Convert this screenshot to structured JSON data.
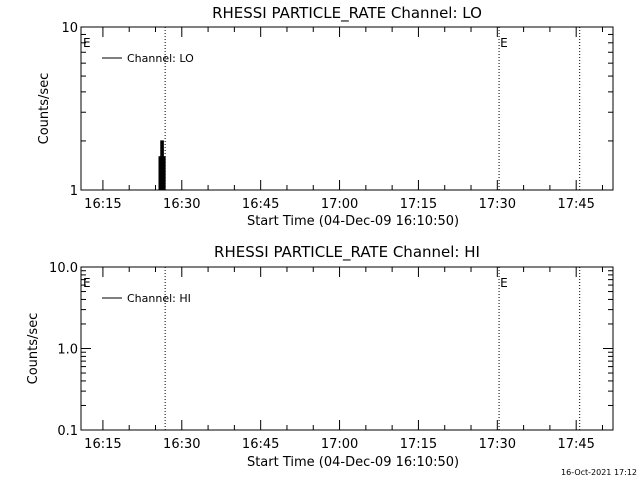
{
  "chart_data": [
    {
      "type": "line",
      "title": "RHESSI PARTICLE_RATE Channel: LO",
      "xlabel": "Start Time (04-Dec-09 16:10:50)",
      "ylabel": "Counts/sec",
      "y_scale": "log",
      "xlim": [
        "16:10:50",
        "17:52:00"
      ],
      "ylim": [
        1,
        10
      ],
      "x_tick_labels": [
        "16:15",
        "16:30",
        "16:45",
        "17:00",
        "17:15",
        "17:30",
        "17:45"
      ],
      "y_tick_labels": [
        "1",
        "10"
      ],
      "y_tick_values": [
        1,
        10
      ],
      "grid": false,
      "legend_position": "top-left",
      "series": [
        {
          "name": "Channel: LO",
          "color": "#000000",
          "points": [
            {
              "t": "16:25:30",
              "v": 1
            },
            {
              "t": "16:25:40",
              "v": 1.6
            },
            {
              "t": "16:25:50",
              "v": 1
            },
            {
              "t": "16:26:00",
              "v": 2
            },
            {
              "t": "16:26:10",
              "v": 1
            },
            {
              "t": "16:26:20",
              "v": 2
            },
            {
              "t": "16:26:30",
              "v": 1
            },
            {
              "t": "16:26:40",
              "v": 1.6
            },
            {
              "t": "16:26:50",
              "v": 1
            }
          ]
        }
      ],
      "vlines": [
        {
          "t": "16:26:50",
          "label": ""
        },
        {
          "t": "17:30:20",
          "label": "E"
        },
        {
          "t": "17:45:40",
          "label": ""
        }
      ],
      "edge_labels": [
        {
          "t": "16:10:50",
          "label": "E"
        }
      ]
    },
    {
      "type": "line",
      "title": "RHESSI PARTICLE_RATE Channel: HI",
      "xlabel": "Start Time (04-Dec-09 16:10:50)",
      "ylabel": "Counts/sec",
      "y_scale": "log",
      "xlim": [
        "16:10:50",
        "17:52:00"
      ],
      "ylim": [
        0.1,
        10
      ],
      "x_tick_labels": [
        "16:15",
        "16:30",
        "16:45",
        "17:00",
        "17:15",
        "17:30",
        "17:45"
      ],
      "y_tick_labels": [
        "0.1",
        "1.0",
        "10.0"
      ],
      "y_tick_values": [
        0.1,
        1,
        10
      ],
      "grid": false,
      "legend_position": "top-left",
      "series": [
        {
          "name": "Channel: HI",
          "color": "#000000",
          "points": []
        }
      ],
      "vlines": [
        {
          "t": "16:26:50",
          "label": ""
        },
        {
          "t": "17:30:20",
          "label": "E"
        },
        {
          "t": "17:45:40",
          "label": ""
        }
      ],
      "edge_labels": [
        {
          "t": "16:10:50",
          "label": "E"
        }
      ]
    }
  ],
  "footer": {
    "timestamp": "16-Oct-2021 17:12"
  }
}
